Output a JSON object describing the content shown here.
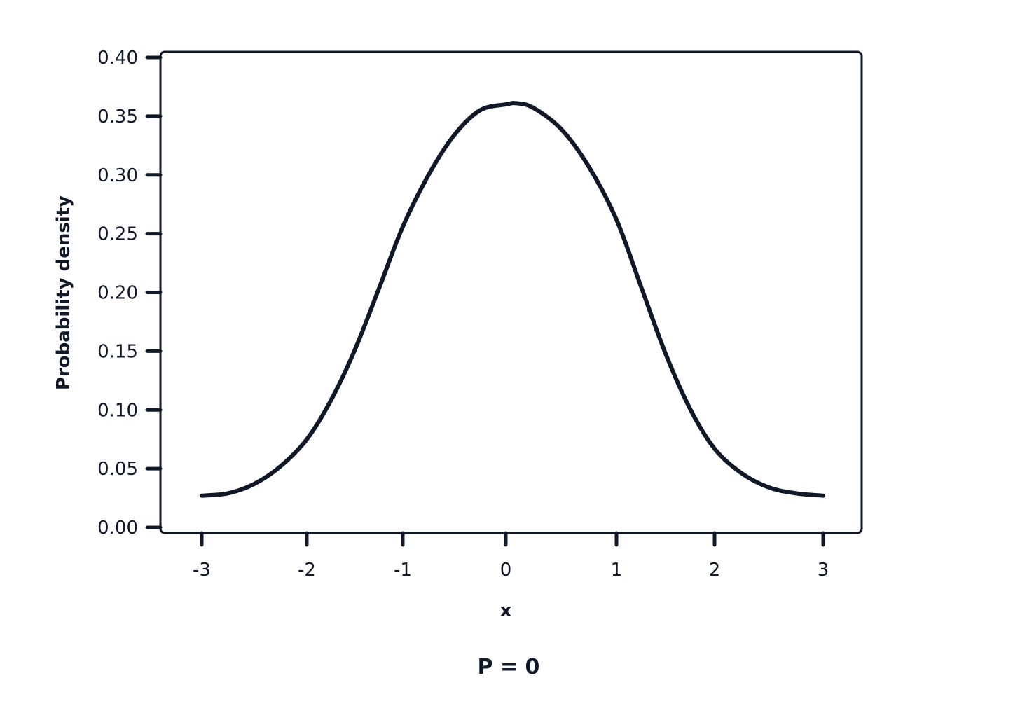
{
  "chart_data": {
    "type": "line",
    "title": "",
    "xlabel": "x",
    "ylabel": "Probability density",
    "caption": "P = 0",
    "xlim": [
      -3,
      3
    ],
    "ylim": [
      0.0,
      0.4
    ],
    "x_ticks": [
      "-3",
      "-2",
      "-1",
      "0",
      "1",
      "2",
      "3"
    ],
    "y_ticks": [
      "0.00",
      "0.05",
      "0.10",
      "0.15",
      "0.20",
      "0.25",
      "0.30",
      "0.35",
      "0.40"
    ],
    "grid": false,
    "legend": "none",
    "line_color": "#111827",
    "series": [
      {
        "x": [
          -3.0,
          -2.75,
          -2.5,
          -2.25,
          -2.0,
          -1.75,
          -1.5,
          -1.25,
          -1.0,
          -0.75,
          -0.5,
          -0.25,
          0.0,
          0.1,
          0.25,
          0.5,
          0.75,
          1.0,
          1.25,
          1.5,
          1.75,
          2.0,
          2.25,
          2.5,
          2.75,
          3.0
        ],
        "y": [
          0.027,
          0.029,
          0.037,
          0.052,
          0.075,
          0.108,
          0.151,
          0.203,
          0.256,
          0.3,
          0.334,
          0.355,
          0.36,
          0.361,
          0.357,
          0.339,
          0.307,
          0.262,
          0.205,
          0.148,
          0.101,
          0.067,
          0.046,
          0.034,
          0.029,
          0.027
        ]
      }
    ]
  }
}
